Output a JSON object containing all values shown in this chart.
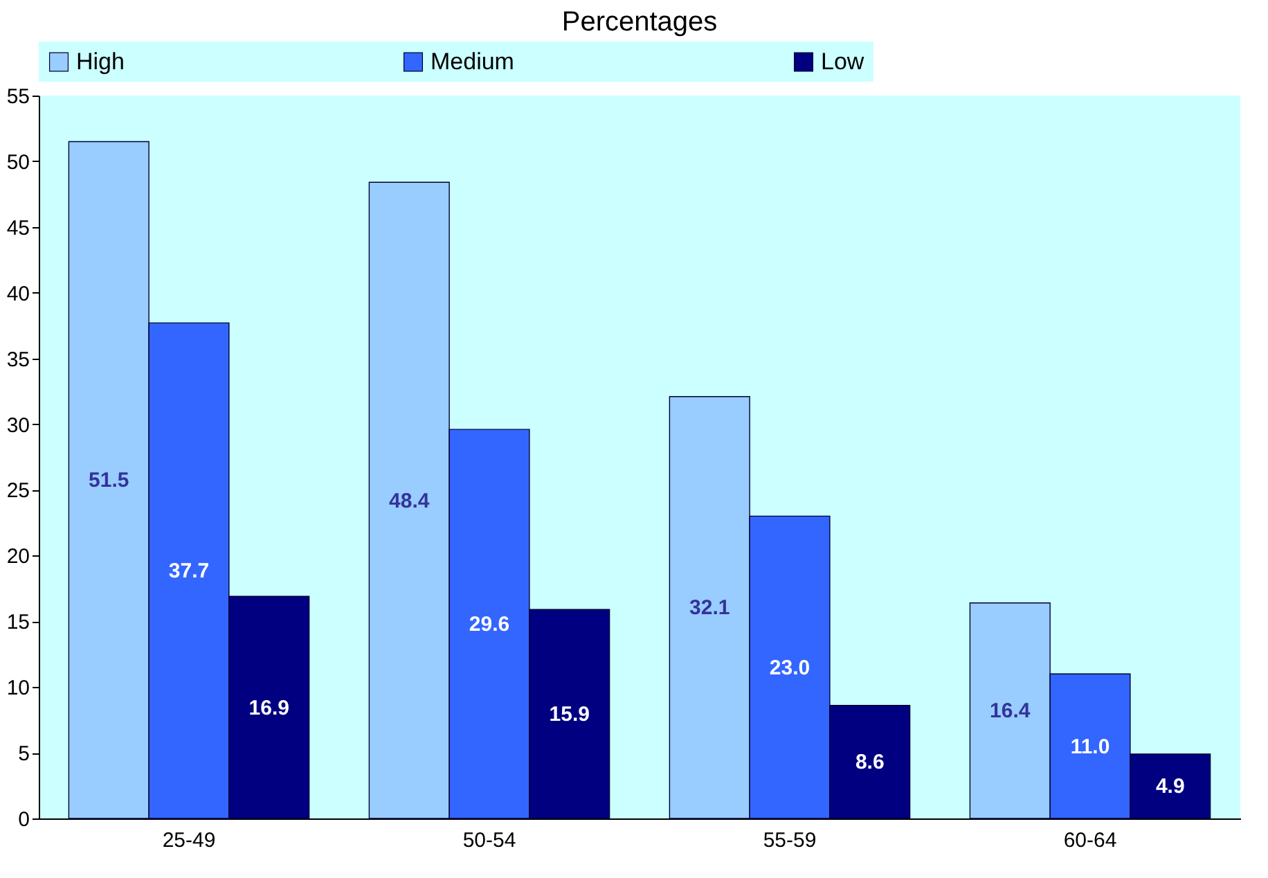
{
  "chart_data": {
    "type": "bar",
    "title": "Percentages",
    "categories": [
      "25-49",
      "50-54",
      "55-59",
      "60-64"
    ],
    "series": [
      {
        "name": "High",
        "color": "#99ccff",
        "values": [
          51.5,
          48.4,
          32.1,
          16.4
        ],
        "value_labels": [
          "51.5",
          "48.4",
          "32.1",
          "16.4"
        ]
      },
      {
        "name": "Medium",
        "color": "#3366ff",
        "values": [
          37.7,
          29.6,
          23.0,
          11.0
        ],
        "value_labels": [
          "37.7",
          "29.6",
          "23.0",
          "11.0"
        ]
      },
      {
        "name": "Low",
        "color": "#000080",
        "values": [
          16.9,
          15.9,
          8.6,
          4.9
        ],
        "value_labels": [
          "16.9",
          "15.9",
          "8.6",
          "4.9"
        ]
      }
    ],
    "ylim": [
      0,
      55
    ],
    "yticks": [
      0,
      5,
      10,
      15,
      20,
      25,
      30,
      35,
      40,
      45,
      50,
      55
    ],
    "legend": "top",
    "grid": false
  }
}
